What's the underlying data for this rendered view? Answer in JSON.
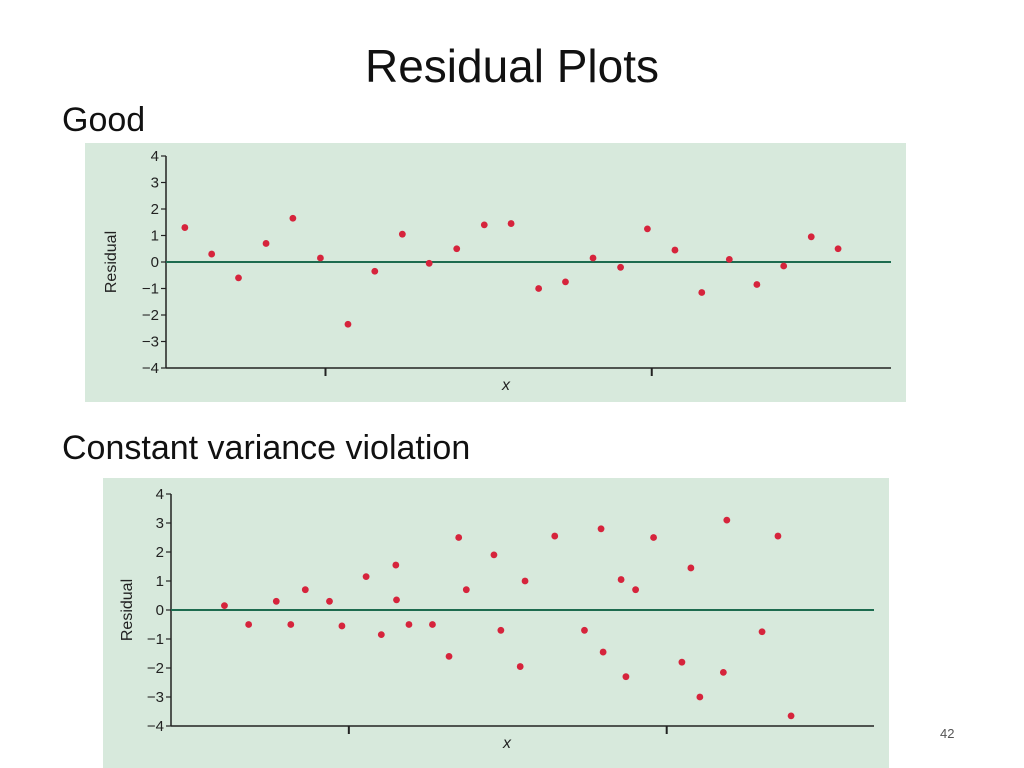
{
  "slide": {
    "title": "Residual Plots",
    "page_number": "42",
    "sections": [
      {
        "label": "Good"
      },
      {
        "label": "Constant variance violation"
      }
    ]
  },
  "colors": {
    "panel_background": "#d7e9dc",
    "zero_line": "#1d6b4f",
    "point": "#d6243c",
    "axis": "#222222"
  },
  "chart_data": [
    {
      "type": "scatter",
      "title": "",
      "xlabel": "x",
      "ylabel": "Residual",
      "ylim": [
        -4,
        4
      ],
      "yticks": [
        4,
        3,
        2,
        1,
        0,
        -1,
        -2,
        -3,
        -4
      ],
      "ytick_labels": [
        "4",
        "3",
        "2",
        "1",
        "0",
        "−1",
        "−2",
        "−3",
        "−4"
      ],
      "x_major_ticks": [
        0.22,
        0.67
      ],
      "xlim": [
        0,
        1
      ],
      "reference_line_y": 0,
      "grid": false,
      "points": [
        {
          "x": 0.026,
          "y": 1.3
        },
        {
          "x": 0.063,
          "y": 0.3
        },
        {
          "x": 0.1,
          "y": -0.6
        },
        {
          "x": 0.138,
          "y": 0.7
        },
        {
          "x": 0.175,
          "y": 1.65
        },
        {
          "x": 0.213,
          "y": 0.15
        },
        {
          "x": 0.251,
          "y": -2.35
        },
        {
          "x": 0.288,
          "y": -0.35
        },
        {
          "x": 0.326,
          "y": 1.05
        },
        {
          "x": 0.363,
          "y": -0.05
        },
        {
          "x": 0.401,
          "y": 0.5
        },
        {
          "x": 0.439,
          "y": 1.4
        },
        {
          "x": 0.476,
          "y": 1.45
        },
        {
          "x": 0.514,
          "y": -1.0
        },
        {
          "x": 0.551,
          "y": -0.75
        },
        {
          "x": 0.589,
          "y": 0.15
        },
        {
          "x": 0.627,
          "y": -0.2
        },
        {
          "x": 0.664,
          "y": 1.25
        },
        {
          "x": 0.702,
          "y": 0.45
        },
        {
          "x": 0.739,
          "y": -1.15
        },
        {
          "x": 0.777,
          "y": 0.1
        },
        {
          "x": 0.815,
          "y": -0.85
        },
        {
          "x": 0.852,
          "y": -0.15
        },
        {
          "x": 0.89,
          "y": 0.95
        },
        {
          "x": 0.927,
          "y": 0.5
        }
      ]
    },
    {
      "type": "scatter",
      "title": "",
      "xlabel": "x",
      "ylabel": "Residual",
      "ylim": [
        -4,
        4
      ],
      "yticks": [
        4,
        3,
        2,
        1,
        0,
        -1,
        -2,
        -3,
        -4
      ],
      "ytick_labels": [
        "4",
        "3",
        "2",
        "1",
        "0",
        "−1",
        "−2",
        "−3",
        "−4"
      ],
      "x_major_ticks": [
        0.24,
        0.7
      ],
      "xlim": [
        0,
        1
      ],
      "reference_line_y": 0,
      "grid": false,
      "points": [
        {
          "x": 0.06,
          "y": 0.15
        },
        {
          "x": 0.095,
          "y": -0.5
        },
        {
          "x": 0.135,
          "y": 0.3
        },
        {
          "x": 0.156,
          "y": -0.5
        },
        {
          "x": 0.177,
          "y": 0.7
        },
        {
          "x": 0.212,
          "y": 0.3
        },
        {
          "x": 0.23,
          "y": -0.55
        },
        {
          "x": 0.265,
          "y": 1.15
        },
        {
          "x": 0.287,
          "y": -0.85
        },
        {
          "x": 0.308,
          "y": 1.55
        },
        {
          "x": 0.309,
          "y": 0.35
        },
        {
          "x": 0.327,
          "y": -0.5
        },
        {
          "x": 0.361,
          "y": -0.5
        },
        {
          "x": 0.385,
          "y": -1.6
        },
        {
          "x": 0.399,
          "y": 2.5
        },
        {
          "x": 0.41,
          "y": 0.7
        },
        {
          "x": 0.45,
          "y": 1.9
        },
        {
          "x": 0.46,
          "y": -0.7
        },
        {
          "x": 0.488,
          "y": -1.95
        },
        {
          "x": 0.495,
          "y": 1.0
        },
        {
          "x": 0.538,
          "y": 2.55
        },
        {
          "x": 0.581,
          "y": -0.7
        },
        {
          "x": 0.605,
          "y": 2.8
        },
        {
          "x": 0.608,
          "y": -1.45
        },
        {
          "x": 0.634,
          "y": 1.05
        },
        {
          "x": 0.641,
          "y": -2.3
        },
        {
          "x": 0.655,
          "y": 0.7
        },
        {
          "x": 0.681,
          "y": 2.5
        },
        {
          "x": 0.722,
          "y": -1.8
        },
        {
          "x": 0.735,
          "y": 1.45
        },
        {
          "x": 0.748,
          "y": -3.0
        },
        {
          "x": 0.782,
          "y": -2.15
        },
        {
          "x": 0.787,
          "y": 3.1
        },
        {
          "x": 0.838,
          "y": -0.75
        },
        {
          "x": 0.861,
          "y": 2.55
        },
        {
          "x": 0.88,
          "y": -3.65
        }
      ]
    }
  ]
}
